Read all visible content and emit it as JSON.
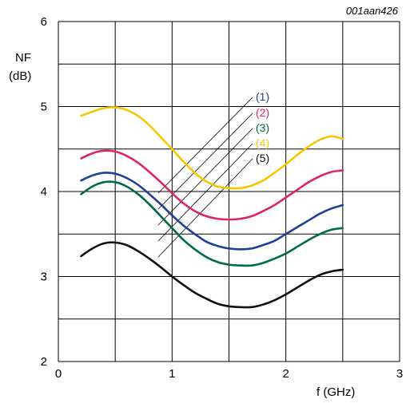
{
  "chart_data": {
    "type": "line",
    "figure_code": "001aan426",
    "ylabel_line1": "NF",
    "ylabel_line2": "(dB)",
    "xlabel": "f (GHz)",
    "xlim": [
      0,
      3
    ],
    "ylim": [
      2,
      6
    ],
    "x_ticks": [
      "0",
      "1",
      "2",
      "3"
    ],
    "y_ticks": [
      "2",
      "3",
      "4",
      "5",
      "6"
    ],
    "grid": true,
    "series": [
      {
        "name": "(1)",
        "color": "#1f3f99",
        "x": [
          0.2,
          0.3,
          0.4,
          0.5,
          0.6,
          0.7,
          0.8,
          0.9,
          1.0,
          1.1,
          1.2,
          1.3,
          1.4,
          1.5,
          1.6,
          1.7,
          1.8,
          1.9,
          2.0,
          2.1,
          2.2,
          2.3,
          2.4,
          2.5
        ],
        "values": [
          4.13,
          4.19,
          4.22,
          4.21,
          4.16,
          4.08,
          3.97,
          3.85,
          3.72,
          3.6,
          3.5,
          3.41,
          3.36,
          3.33,
          3.32,
          3.33,
          3.37,
          3.42,
          3.5,
          3.58,
          3.66,
          3.74,
          3.8,
          3.84
        ]
      },
      {
        "name": "(2)",
        "color": "#e0245e",
        "x": [
          0.2,
          0.3,
          0.4,
          0.5,
          0.6,
          0.7,
          0.8,
          0.9,
          1.0,
          1.1,
          1.2,
          1.3,
          1.4,
          1.5,
          1.6,
          1.7,
          1.8,
          1.9,
          2.0,
          2.1,
          2.2,
          2.3,
          2.4,
          2.5
        ],
        "values": [
          4.39,
          4.45,
          4.48,
          4.47,
          4.42,
          4.34,
          4.23,
          4.11,
          3.98,
          3.86,
          3.77,
          3.71,
          3.68,
          3.67,
          3.68,
          3.71,
          3.77,
          3.84,
          3.93,
          4.02,
          4.11,
          4.18,
          4.23,
          4.25
        ]
      },
      {
        "name": "(3)",
        "color": "#006a50",
        "x": [
          0.2,
          0.3,
          0.4,
          0.5,
          0.6,
          0.7,
          0.8,
          0.9,
          1.0,
          1.1,
          1.2,
          1.3,
          1.4,
          1.5,
          1.6,
          1.7,
          1.8,
          1.9,
          2.0,
          2.1,
          2.2,
          2.3,
          2.4,
          2.5
        ],
        "values": [
          3.97,
          4.06,
          4.11,
          4.11,
          4.06,
          3.97,
          3.85,
          3.71,
          3.57,
          3.43,
          3.32,
          3.23,
          3.17,
          3.14,
          3.13,
          3.13,
          3.16,
          3.21,
          3.27,
          3.35,
          3.43,
          3.5,
          3.55,
          3.57
        ]
      },
      {
        "name": "(4)",
        "color": "#f7c600",
        "x": [
          0.2,
          0.3,
          0.4,
          0.5,
          0.6,
          0.7,
          0.8,
          0.9,
          1.0,
          1.1,
          1.2,
          1.3,
          1.4,
          1.5,
          1.6,
          1.7,
          1.8,
          1.9,
          2.0,
          2.1,
          2.2,
          2.3,
          2.4,
          2.5
        ],
        "values": [
          4.89,
          4.94,
          4.98,
          4.99,
          4.96,
          4.89,
          4.78,
          4.64,
          4.5,
          4.35,
          4.22,
          4.12,
          4.06,
          4.04,
          4.04,
          4.07,
          4.13,
          4.22,
          4.32,
          4.43,
          4.53,
          4.61,
          4.65,
          4.62
        ]
      },
      {
        "name": "(5)",
        "color": "#111111",
        "x": [
          0.2,
          0.3,
          0.4,
          0.5,
          0.6,
          0.7,
          0.8,
          0.9,
          1.0,
          1.1,
          1.2,
          1.3,
          1.4,
          1.5,
          1.6,
          1.7,
          1.8,
          1.9,
          2.0,
          2.1,
          2.2,
          2.3,
          2.4,
          2.5
        ],
        "values": [
          3.24,
          3.33,
          3.39,
          3.4,
          3.37,
          3.3,
          3.21,
          3.11,
          3.0,
          2.9,
          2.81,
          2.74,
          2.68,
          2.65,
          2.64,
          2.64,
          2.67,
          2.72,
          2.79,
          2.87,
          2.95,
          3.02,
          3.06,
          3.08
        ]
      }
    ]
  }
}
